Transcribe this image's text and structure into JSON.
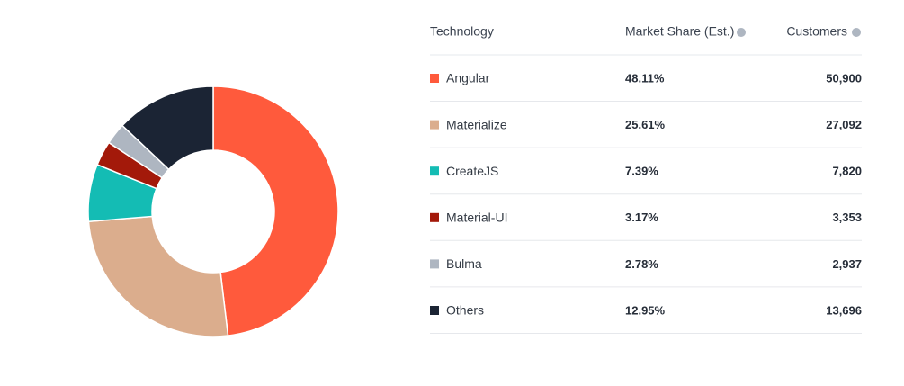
{
  "chart_data": {
    "type": "pie",
    "categories": [
      "Angular",
      "Materialize",
      "CreateJS",
      "Material-UI",
      "Bulma",
      "Others"
    ],
    "values": [
      48.11,
      25.61,
      7.39,
      3.17,
      2.78,
      12.95
    ],
    "value_labels": [
      "48.11%",
      "25.61%",
      "7.39%",
      "3.17%",
      "2.78%",
      "12.95%"
    ],
    "colors": [
      "#ff5a3c",
      "#dbad8d",
      "#14bcb4",
      "#a3190a",
      "#aeb6c1",
      "#1b2434"
    ]
  },
  "table": {
    "headers": [
      "Technology",
      "Market Share (Est.)",
      "Customers"
    ],
    "customers": [
      "50,900",
      "27,092",
      "7,820",
      "3,353",
      "2,937",
      "13,696"
    ]
  }
}
